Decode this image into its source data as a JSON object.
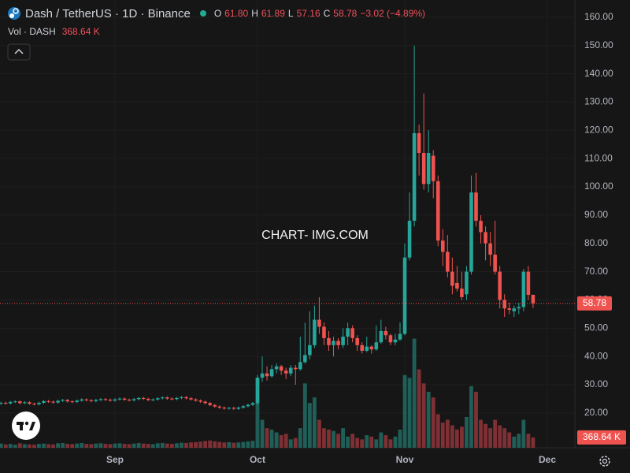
{
  "chart_data": {
    "type": "candlestick",
    "title": "Dash / TetherUS · 1D · Binance",
    "header": {
      "labels": [
        "O",
        "H",
        "L",
        "C"
      ],
      "values": [
        "61.80",
        "61.89",
        "57.16",
        "58.78"
      ],
      "change": "−3.02 (−4.89%)"
    },
    "watermark": "CHART- IMG.COM",
    "colors": {
      "up": "#26a69a",
      "down": "#ef5350",
      "up_volume": "#1f5f58",
      "down_volume": "#7e3034"
    },
    "categories": [
      null,
      null,
      null,
      null,
      null,
      null,
      null,
      null,
      null,
      null,
      null,
      null,
      null,
      null,
      null,
      null,
      null,
      null,
      null,
      null,
      null,
      null,
      null,
      null,
      "Sep",
      null,
      null,
      null,
      null,
      null,
      null,
      null,
      null,
      null,
      null,
      null,
      null,
      null,
      null,
      null,
      null,
      null,
      null,
      null,
      null,
      null,
      null,
      null,
      null,
      null,
      null,
      null,
      null,
      null,
      "Oct",
      null,
      null,
      null,
      null,
      null,
      null,
      null,
      null,
      null,
      null,
      null,
      null,
      null,
      null,
      null,
      null,
      null,
      null,
      null,
      null,
      null,
      null,
      null,
      null,
      null,
      null,
      null,
      null,
      null,
      null,
      "Nov",
      null,
      null,
      null,
      null,
      null,
      null,
      null,
      null,
      null,
      null,
      null,
      null,
      null,
      null,
      null,
      null,
      null,
      null,
      null,
      null,
      null,
      null,
      null,
      null,
      null,
      null,
      null,
      null,
      null,
      "Dec",
      null,
      null,
      null,
      null,
      null
    ],
    "open": [
      23.3,
      23.6,
      23.4,
      23.9,
      24.1,
      23.5,
      23.8,
      23.3,
      23.1,
      23.6,
      24.2,
      24.0,
      23.7,
      24.3,
      24.6,
      24.1,
      23.9,
      24.4,
      24.8,
      24.5,
      24.2,
      24.6,
      24.9,
      24.7,
      24.4,
      24.8,
      25.1,
      24.7,
      24.5,
      24.9,
      25.3,
      25.0,
      24.6,
      24.8,
      25.2,
      25.5,
      25.1,
      24.9,
      25.3,
      25.6,
      25.2,
      24.8,
      24.4,
      24.0,
      23.5,
      22.8,
      22.3,
      21.9,
      21.6,
      21.8,
      21.5,
      21.9,
      22.4,
      22.9,
      23.5,
      32.5,
      34.0,
      33.0,
      35.5,
      36.5,
      35.0,
      34.0,
      36.0,
      35.5,
      38.0,
      40.5,
      44.0,
      53.0,
      50.5,
      46.5,
      44.0,
      45.5,
      44.0,
      47.0,
      50.0,
      46.5,
      44.0,
      42.0,
      43.5,
      42.5,
      45.0,
      49.0,
      47.5,
      45.0,
      46.0,
      48,
      75,
      88,
      119,
      112,
      101,
      111,
      102,
      81,
      77,
      70,
      66,
      64,
      62,
      70,
      98,
      88,
      84,
      80,
      76,
      70,
      60,
      57,
      56,
      57,
      57.5,
      70,
      61.8,
      null,
      null,
      null,
      null,
      null,
      null,
      null,
      null
    ],
    "high": [
      24.0,
      24.0,
      24.3,
      24.5,
      24.5,
      24.2,
      24.2,
      23.7,
      24.0,
      24.6,
      24.6,
      24.4,
      24.7,
      25.0,
      25.0,
      24.5,
      24.8,
      25.2,
      25.2,
      24.9,
      25.0,
      25.3,
      25.3,
      25.1,
      25.2,
      25.5,
      25.5,
      25.1,
      25.3,
      25.7,
      25.7,
      25.4,
      25.2,
      25.6,
      25.9,
      25.9,
      25.5,
      25.7,
      26.0,
      26.0,
      25.6,
      25.2,
      24.8,
      24.4,
      23.9,
      23.2,
      22.7,
      22.3,
      22.2,
      22.2,
      22.3,
      22.8,
      23.3,
      23.9,
      33.5,
      40.0,
      36.5,
      37.0,
      37.5,
      37.0,
      36.0,
      37.0,
      37.0,
      47.0,
      52.0,
      56.0,
      58.0,
      61.0,
      52.0,
      49.0,
      47.0,
      46.5,
      50.0,
      52.0,
      51.0,
      47.5,
      45.0,
      47.0,
      44.0,
      51.0,
      53.0,
      50.5,
      48.0,
      48.0,
      52.0,
      80,
      98,
      150,
      122,
      133,
      120,
      113,
      104,
      85,
      83,
      75,
      72,
      70,
      72,
      104,
      105,
      90,
      86,
      84,
      88,
      72,
      62,
      59,
      58,
      59,
      71,
      72,
      61.89,
      null,
      null,
      null,
      null,
      null,
      null,
      null,
      null
    ],
    "low": [
      22.9,
      23.0,
      23.0,
      23.5,
      23.1,
      23.1,
      22.9,
      22.7,
      22.7,
      23.2,
      23.6,
      23.3,
      23.3,
      23.9,
      23.7,
      23.5,
      23.5,
      24.0,
      24.1,
      23.8,
      23.8,
      24.2,
      24.3,
      24.0,
      24.0,
      24.4,
      24.3,
      24.1,
      24.1,
      24.5,
      24.6,
      24.2,
      24.2,
      24.4,
      24.8,
      24.7,
      24.5,
      24.5,
      24.9,
      24.8,
      24.4,
      24.0,
      23.6,
      23.1,
      22.4,
      21.9,
      21.5,
      21.2,
      21.2,
      21.1,
      21.1,
      21.5,
      22.0,
      22.5,
      23.0,
      31.0,
      31.5,
      32.5,
      34.0,
      33.5,
      32.0,
      33.0,
      30.0,
      35.0,
      37.5,
      39.0,
      43.0,
      48.0,
      44.0,
      42.0,
      40.0,
      42.5,
      43.0,
      44.0,
      45.0,
      42.0,
      41.0,
      41.5,
      41.0,
      42.0,
      44.5,
      46.0,
      44.0,
      44.0,
      45.5,
      47.5,
      74,
      86,
      104,
      99,
      98,
      96,
      79,
      72,
      68,
      62,
      63,
      60,
      60,
      69,
      86,
      80,
      74,
      72,
      69,
      57,
      54,
      55,
      54,
      55,
      56,
      60,
      57.16,
      null,
      null,
      null,
      null,
      null,
      null,
      null,
      null
    ],
    "close": [
      23.6,
      23.4,
      23.9,
      24.1,
      23.5,
      23.8,
      23.3,
      23.1,
      23.6,
      24.2,
      24.0,
      23.7,
      24.3,
      24.6,
      24.1,
      23.9,
      24.4,
      24.8,
      24.5,
      24.2,
      24.6,
      24.9,
      24.7,
      24.4,
      24.8,
      25.1,
      24.7,
      24.5,
      24.9,
      25.3,
      25.0,
      24.6,
      24.8,
      25.2,
      25.5,
      25.1,
      24.9,
      25.3,
      25.6,
      25.2,
      24.8,
      24.4,
      24.0,
      23.5,
      22.8,
      22.3,
      21.9,
      21.6,
      21.8,
      21.5,
      21.9,
      22.4,
      22.9,
      23.5,
      32.5,
      34.0,
      33.0,
      35.5,
      36.5,
      35.0,
      34.0,
      36.0,
      35.5,
      38.0,
      40.5,
      44.0,
      53.0,
      50.5,
      46.5,
      44.0,
      45.5,
      44.0,
      47.0,
      50.0,
      46.5,
      44.0,
      42.0,
      43.5,
      42.5,
      45.0,
      49.0,
      47.5,
      45.0,
      46.0,
      48.0,
      75,
      88,
      119,
      112,
      101,
      112,
      102,
      81,
      77,
      70,
      65,
      64,
      61,
      70,
      98,
      88,
      84,
      80,
      76,
      70,
      60,
      57,
      56.5,
      57,
      57.5,
      70,
      61.8,
      58.78,
      null,
      null,
      null,
      null,
      null,
      null,
      null,
      null
    ],
    "volume": {
      "name": "Vol · DASH",
      "values": [
        150000,
        120000,
        140000,
        110000,
        160000,
        130000,
        120000,
        110000,
        140000,
        150000,
        130000,
        120000,
        160000,
        170000,
        140000,
        130000,
        150000,
        170000,
        140000,
        130000,
        150000,
        160000,
        140000,
        130000,
        150000,
        160000,
        140000,
        130000,
        150000,
        170000,
        150000,
        140000,
        130000,
        160000,
        170000,
        150000,
        140000,
        160000,
        180000,
        170000,
        190000,
        200000,
        220000,
        240000,
        260000,
        230000,
        210000,
        190000,
        200000,
        180000,
        190000,
        210000,
        230000,
        250000,
        2500000,
        1000000,
        700000,
        650000,
        550000,
        450000,
        500000,
        300000,
        350000,
        700000,
        2300000,
        1600000,
        1800000,
        1000000,
        700000,
        650000,
        600000,
        500000,
        700000,
        400000,
        500000,
        350000,
        300000,
        450000,
        400000,
        300000,
        550000,
        450000,
        300000,
        400000,
        650000,
        2600000,
        2500000,
        3900000,
        2800000,
        2300000,
        2000000,
        1800000,
        1200000,
        900000,
        1000000,
        800000,
        650000,
        750000,
        1100000,
        2200000,
        2000000,
        1000000,
        850000,
        700000,
        1000000,
        800000,
        700000,
        550000,
        400000,
        500000,
        1000000,
        500000,
        368640,
        null,
        null,
        null,
        null,
        null,
        null,
        null,
        null
      ],
      "value_labels": [
        null,
        null,
        null,
        null,
        null,
        null,
        null,
        null,
        null,
        null,
        null,
        null,
        null,
        null,
        null,
        null,
        null,
        null,
        null,
        null,
        null,
        null,
        null,
        null,
        null,
        null,
        null,
        null,
        null,
        null,
        null,
        null,
        null,
        null,
        null,
        null,
        null,
        null,
        null,
        null,
        null,
        null,
        null,
        null,
        null,
        null,
        null,
        null,
        null,
        null,
        null,
        null,
        null,
        null,
        null,
        null,
        null,
        null,
        null,
        null,
        null,
        null,
        null,
        null,
        null,
        null,
        null,
        null,
        null,
        null,
        null,
        null,
        null,
        null,
        null,
        null,
        null,
        null,
        null,
        null,
        null,
        null,
        null,
        null,
        null,
        null,
        null,
        null,
        null,
        null,
        null,
        null,
        null,
        null,
        null,
        null,
        null,
        null,
        null,
        null,
        null,
        null,
        null,
        null,
        null,
        null,
        null,
        null,
        null,
        null,
        null,
        null,
        "368.64 K",
        null,
        null,
        null,
        null,
        null,
        null,
        null,
        null
      ]
    },
    "ylim": [
      7.7,
      166.1
    ],
    "y2lim": [
      0,
      16000000
    ],
    "yticks": [
      {
        "value": 20,
        "label": "20.00"
      },
      {
        "value": 30,
        "label": "30.00"
      },
      {
        "value": 40,
        "label": "40.00"
      },
      {
        "value": 50,
        "label": "50.00"
      },
      {
        "value": 60,
        "label": "60.00"
      },
      {
        "value": 70,
        "label": "70.00"
      },
      {
        "value": 80,
        "label": "80.00"
      },
      {
        "value": 90,
        "label": "90.00"
      },
      {
        "value": 100,
        "label": "100.00"
      },
      {
        "value": 110,
        "label": "110.00"
      },
      {
        "value": 120,
        "label": "120.00"
      },
      {
        "value": 130,
        "label": "130.00"
      },
      {
        "value": 140,
        "label": "140.00"
      },
      {
        "value": 150,
        "label": "150.00"
      },
      {
        "value": 160,
        "label": "160.00"
      }
    ],
    "grid": true
  }
}
